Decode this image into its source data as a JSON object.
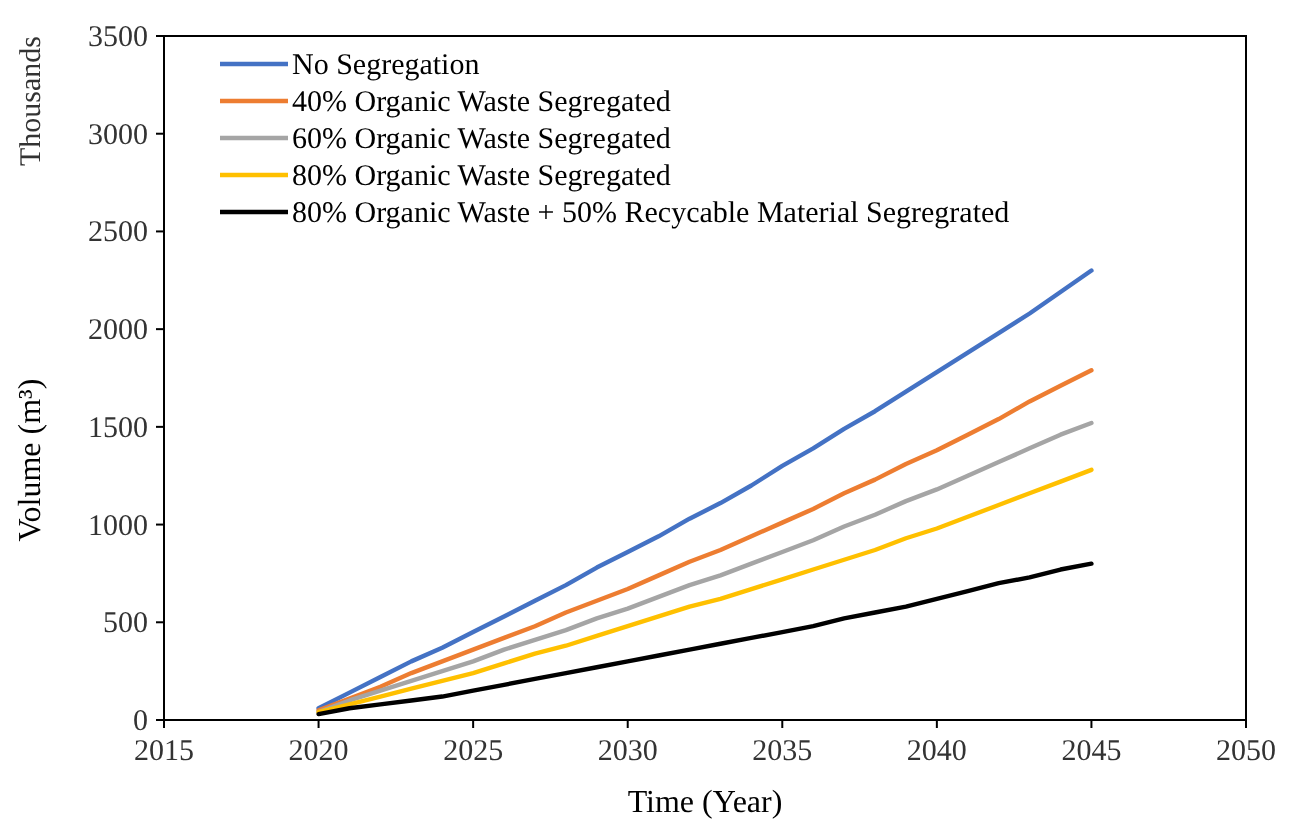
{
  "chart_data": {
    "type": "line",
    "xlabel": "Time  (Year)",
    "ylabel": "Volume  (m³)",
    "annotations": [
      "Thousands"
    ],
    "x": [
      2020,
      2021,
      2022,
      2023,
      2024,
      2025,
      2026,
      2027,
      2028,
      2029,
      2030,
      2031,
      2032,
      2033,
      2034,
      2035,
      2036,
      2037,
      2038,
      2039,
      2040,
      2041,
      2042,
      2043,
      2044,
      2045
    ],
    "xlim": [
      2015,
      2050
    ],
    "xticks": [
      2015,
      2020,
      2025,
      2030,
      2035,
      2040,
      2045,
      2050
    ],
    "ylim": [
      0,
      3500
    ],
    "yticks": [
      0,
      500,
      1000,
      1500,
      2000,
      2500,
      3000,
      3500
    ],
    "grid": false,
    "legend": "top left",
    "marker": "none",
    "line_style": "solid",
    "series": [
      {
        "name": "No Segregation",
        "color": "#4472c4",
        "values": [
          60,
          140,
          220,
          300,
          370,
          450,
          530,
          610,
          690,
          780,
          860,
          940,
          1030,
          1110,
          1200,
          1300,
          1390,
          1490,
          1580,
          1680,
          1780,
          1880,
          1980,
          2080,
          2190,
          2300
        ]
      },
      {
        "name": "40% Organic Waste Segregated",
        "color": "#ed7d31",
        "values": [
          50,
          110,
          170,
          240,
          300,
          360,
          420,
          480,
          550,
          610,
          670,
          740,
          810,
          870,
          940,
          1010,
          1080,
          1160,
          1230,
          1310,
          1380,
          1460,
          1540,
          1630,
          1710,
          1790
        ]
      },
      {
        "name": "60% Organic Waste Segregated",
        "color": "#a5a5a5",
        "values": [
          40,
          100,
          150,
          200,
          250,
          300,
          360,
          410,
          460,
          520,
          570,
          630,
          690,
          740,
          800,
          860,
          920,
          990,
          1050,
          1120,
          1180,
          1250,
          1320,
          1390,
          1460,
          1520
        ]
      },
      {
        "name": "80% Organic Waste Segregated",
        "color": "#ffc000",
        "values": [
          40,
          80,
          120,
          160,
          200,
          240,
          290,
          340,
          380,
          430,
          480,
          530,
          580,
          620,
          670,
          720,
          770,
          820,
          870,
          930,
          980,
          1040,
          1100,
          1160,
          1220,
          1280
        ]
      },
      {
        "name": "80% Organic Waste + 50% Recycable Material Segregrated",
        "color": "#000000",
        "values": [
          30,
          60,
          80,
          100,
          120,
          150,
          180,
          210,
          240,
          270,
          300,
          330,
          360,
          390,
          420,
          450,
          480,
          520,
          550,
          580,
          620,
          660,
          700,
          730,
          770,
          800
        ]
      }
    ]
  }
}
